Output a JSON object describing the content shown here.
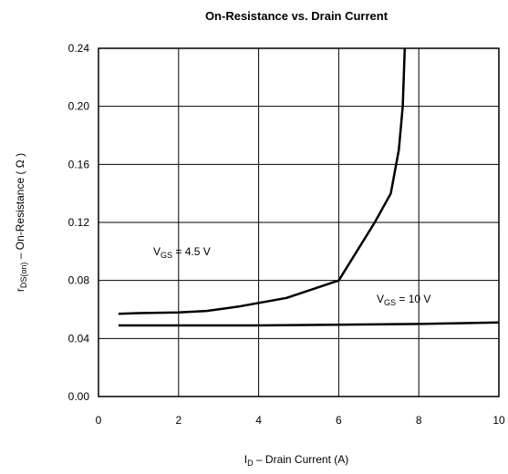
{
  "chart_data": {
    "type": "line",
    "title": "On-Resistance vs. Drain Current",
    "x_label": [
      "I",
      "D",
      " – Drain Current (A)"
    ],
    "y_label": [
      "r",
      "DS(on)",
      " – On-Resistance ( Ω )"
    ],
    "xlim": [
      0,
      10
    ],
    "ylim": [
      0,
      0.24
    ],
    "xticks": [
      0,
      2,
      4,
      6,
      8,
      10
    ],
    "yticks": [
      {
        "value": 0,
        "label": "0.00"
      },
      0.04,
      0.08,
      0.12,
      0.16,
      {
        "value": 0.2,
        "label": "0.20"
      },
      0.24
    ],
    "grid": true,
    "series": [
      {
        "name": [
          "V",
          "GS",
          " = 4.5 V"
        ],
        "color": "#000000",
        "x": [
          0.5,
          1,
          2,
          2.7,
          3.5,
          4.7,
          6,
          6.9,
          7.3,
          7.5,
          7.6,
          7.65
        ],
        "values": [
          0.057,
          0.0575,
          0.058,
          0.059,
          0.062,
          0.068,
          0.08,
          0.12,
          0.14,
          0.17,
          0.2,
          0.24
        ]
      },
      {
        "name": [
          "V",
          "GS",
          " = 10 V"
        ],
        "color": "#000000",
        "x": [
          0.5,
          4,
          8,
          10
        ],
        "values": [
          0.049,
          0.049,
          0.05,
          0.051
        ]
      }
    ]
  }
}
